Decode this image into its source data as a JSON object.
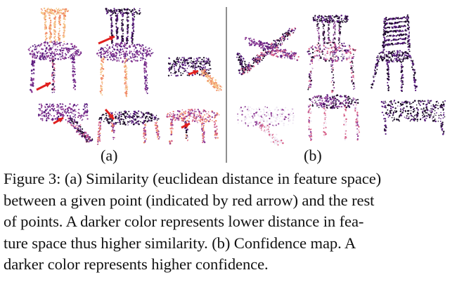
{
  "figure": {
    "panel_labels": {
      "a": "(a)",
      "b": "(b)"
    },
    "colors": {
      "dark": "#1a0b26",
      "purple": "#5a1e7f",
      "violet": "#8d3a94",
      "pink": "#d7628a",
      "salmon": "#f08a66",
      "peach": "#f5c589",
      "light": "#efe8f3",
      "arrow": "#e0201f"
    }
  },
  "caption": {
    "lines": [
      "Figure 3: (a) Similarity (euclidean distance in feature space)",
      "between a given point (indicated by red arrow) and the rest",
      "of points.  A darker color represents lower distance in fea-",
      "ture space thus higher similarity.  (b) Confidence map.  A",
      "darker color represents higher confidence."
    ]
  }
}
